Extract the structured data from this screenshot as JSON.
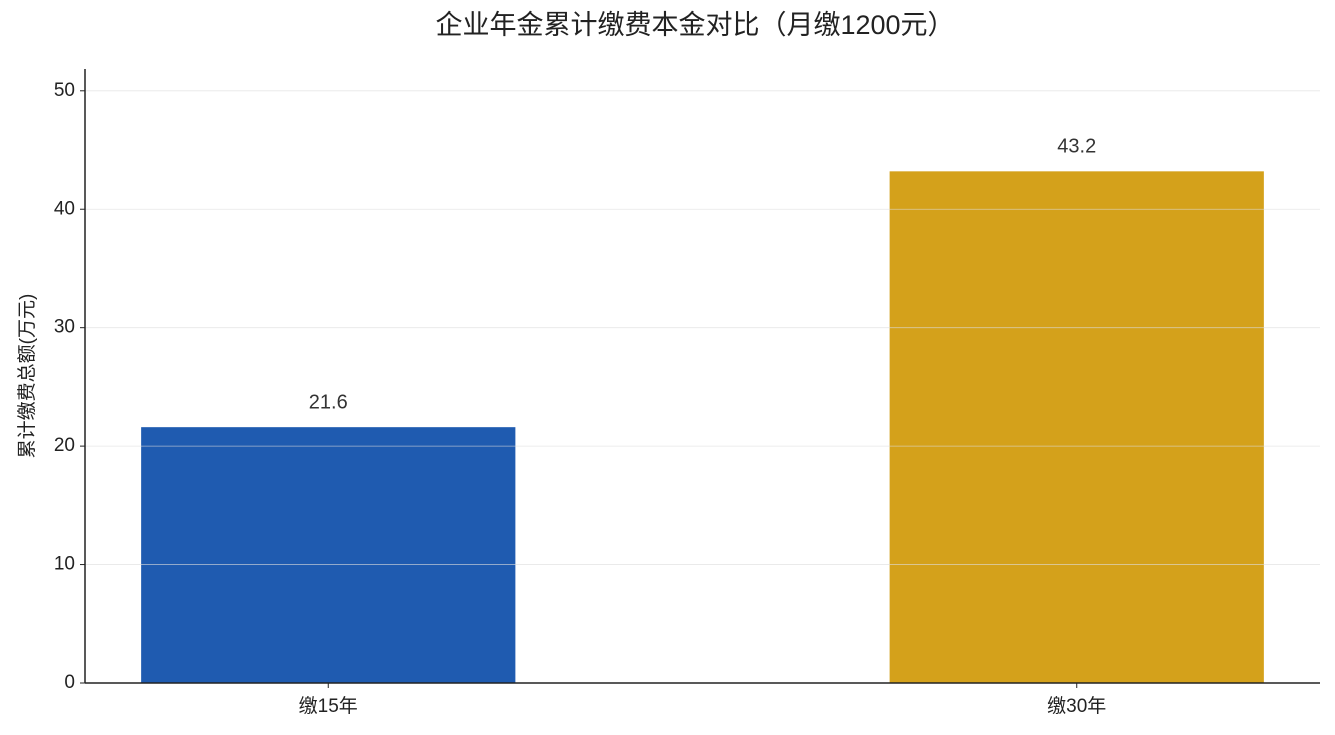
{
  "chart_data": {
    "type": "bar",
    "title": "企业年金累计缴费本金对比（月缴1200元）",
    "ylabel": "累计缴费总额(万元)",
    "categories": [
      "缴15年",
      "缴30年"
    ],
    "values": [
      21.6,
      43.2
    ],
    "colors": [
      "#1f5bb0",
      "#d4a11b"
    ],
    "ylim": [
      0,
      51.84
    ],
    "yticks": [
      0,
      10,
      20,
      30,
      40,
      50
    ],
    "grid": true
  }
}
